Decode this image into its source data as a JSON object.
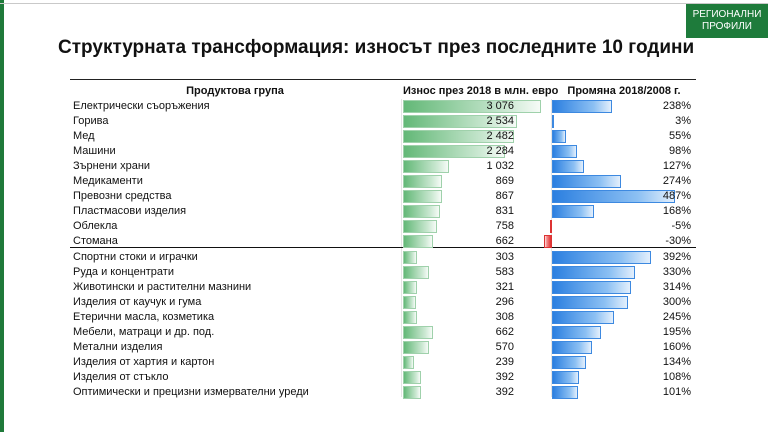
{
  "badge": {
    "line1": "РЕГИОНАЛНИ",
    "line2": "ПРОФИЛИ"
  },
  "title": "Структурната трансформация: износът през последните 10 години",
  "header": {
    "name": "Продуктова група",
    "exports": "Износ през 2018 в млн. евро",
    "change": "Промяна 2018/2008 г."
  },
  "colors": {
    "accent_green": "#1e7b3b",
    "bar_green": "#63b877",
    "bar_blue": "#2b7fe0",
    "bar_red": "#e02b2b"
  },
  "exports_max": 3076,
  "change_max": 487,
  "change_min": -30,
  "rows": [
    {
      "name": "Електрически съоръжения",
      "exports": 3076,
      "exports_text": "3 076",
      "change": 238,
      "change_text": "238%"
    },
    {
      "name": "Горива",
      "exports": 2534,
      "exports_text": "2 534",
      "change": 3,
      "change_text": "3%"
    },
    {
      "name": "Мед",
      "exports": 2482,
      "exports_text": "2 482",
      "change": 55,
      "change_text": "55%"
    },
    {
      "name": "Машини",
      "exports": 2284,
      "exports_text": "2 284",
      "change": 98,
      "change_text": "98%"
    },
    {
      "name": "Зърнени храни",
      "exports": 1032,
      "exports_text": "1 032",
      "change": 127,
      "change_text": "127%"
    },
    {
      "name": "Медикаменти",
      "exports": 869,
      "exports_text": "869",
      "change": 274,
      "change_text": "274%"
    },
    {
      "name": "Превозни средства",
      "exports": 867,
      "exports_text": "867",
      "change": 487,
      "change_text": "487%"
    },
    {
      "name": "Пластмасови изделия",
      "exports": 831,
      "exports_text": "831",
      "change": 168,
      "change_text": "168%"
    },
    {
      "name": "Облекла",
      "exports": 758,
      "exports_text": "758",
      "change": -5,
      "change_text": "-5%"
    },
    {
      "name": "Стомана",
      "exports": 662,
      "exports_text": "662",
      "change": -30,
      "change_text": "-30%"
    },
    {
      "name": "Спортни стоки и играчки",
      "exports": 303,
      "exports_text": "303",
      "change": 392,
      "change_text": "392%"
    },
    {
      "name": "Руда и концентрати",
      "exports": 583,
      "exports_text": "583",
      "change": 330,
      "change_text": "330%"
    },
    {
      "name": "Животински и растителни мазнини",
      "exports": 321,
      "exports_text": "321",
      "change": 314,
      "change_text": "314%"
    },
    {
      "name": "Изделия от каучук и гума",
      "exports": 296,
      "exports_text": "296",
      "change": 300,
      "change_text": "300%"
    },
    {
      "name": "Етерични масла, козметика",
      "exports": 308,
      "exports_text": "308",
      "change": 245,
      "change_text": "245%"
    },
    {
      "name": "Мебели, матраци и др. под.",
      "exports": 662,
      "exports_text": "662",
      "change": 195,
      "change_text": "195%"
    },
    {
      "name": "Метални изделия",
      "exports": 570,
      "exports_text": "570",
      "change": 160,
      "change_text": "160%"
    },
    {
      "name": "Изделия от хартия и картон",
      "exports": 239,
      "exports_text": "239",
      "change": 134,
      "change_text": "134%"
    },
    {
      "name": "Изделия от стъкло",
      "exports": 392,
      "exports_text": "392",
      "change": 108,
      "change_text": "108%"
    },
    {
      "name": "Оптимически и прецизни измервателни уреди",
      "exports": 392,
      "exports_text": "392",
      "change": 101,
      "change_text": "101%"
    }
  ]
}
